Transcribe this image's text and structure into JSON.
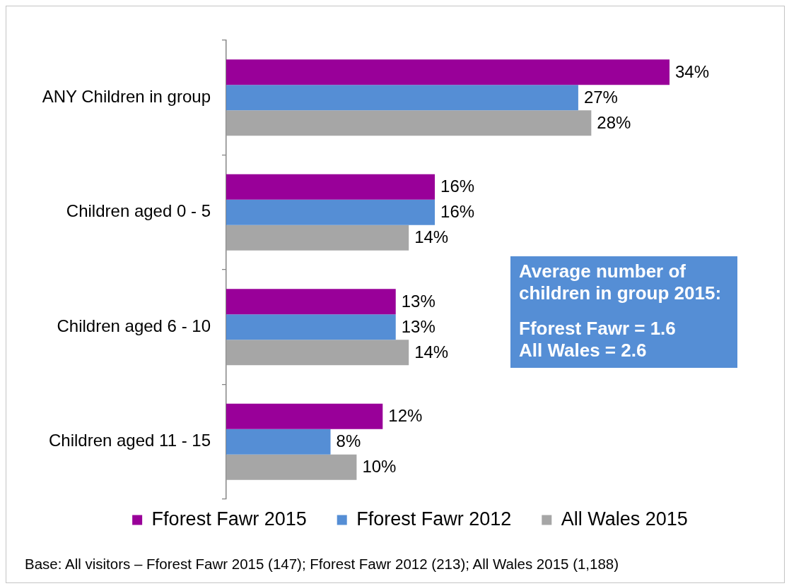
{
  "chart_data": {
    "type": "bar",
    "orientation": "horizontal",
    "categories": [
      "ANY Children in group",
      "Children aged 0 - 5",
      "Children aged 6 - 10",
      "Children aged 11 - 15"
    ],
    "series": [
      {
        "name": "Fforest Fawr 2015",
        "color": "#990099",
        "values": [
          34,
          16,
          13,
          12
        ],
        "value_labels": [
          "34%",
          "16%",
          "13%",
          "12%"
        ]
      },
      {
        "name": "Fforest Fawr 2012",
        "color": "#558ed5",
        "values": [
          27,
          16,
          13,
          8
        ],
        "value_labels": [
          "27%",
          "16%",
          "13%",
          "8%"
        ]
      },
      {
        "name": "All Wales 2015",
        "color": "#a6a6a6",
        "values": [
          28,
          14,
          14,
          10
        ],
        "value_labels": [
          "28%",
          "14%",
          "14%",
          "10%"
        ]
      }
    ],
    "legend": "bottom",
    "grid": false,
    "tick_labels": "y",
    "annotations": [
      "Average number of children in group 2015:",
      "Fforest Fawr = 1.6",
      "All Wales = 2.6",
      "Base: All visitors – Fforest Fawr 2015 (147); Fforest Fawr 2012 (213); All Wales 2015 (1,188)"
    ]
  }
}
